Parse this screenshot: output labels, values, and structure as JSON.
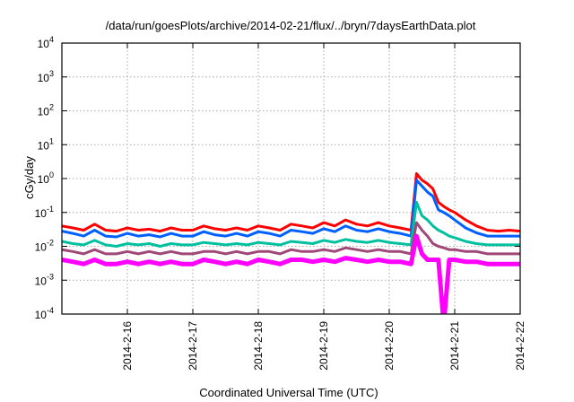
{
  "chart_data": {
    "type": "line",
    "title": "/data/run/goesPlots/archive/2014-02-21/flux/../bryn/7daysEarthData.plot",
    "xlabel": "Coordinated Universal Time (UTC)",
    "ylabel": "cGy/day",
    "yscale": "log",
    "ylim": [
      0.0001,
      10000
    ],
    "xlim_hours_from": "2014-02-15 00:00",
    "xlim": [
      0,
      168
    ],
    "grid": true,
    "legend": "none",
    "y_ticks": [
      {
        "base": "10",
        "exp": "4",
        "value": 10000
      },
      {
        "base": "10",
        "exp": "3",
        "value": 1000
      },
      {
        "base": "10",
        "exp": "2",
        "value": 100
      },
      {
        "base": "10",
        "exp": "1",
        "value": 10
      },
      {
        "base": "10",
        "exp": "0",
        "value": 1
      },
      {
        "base": "10",
        "exp": "-1",
        "value": 0.1
      },
      {
        "base": "10",
        "exp": "-2",
        "value": 0.01
      },
      {
        "base": "10",
        "exp": "-3",
        "value": 0.001
      },
      {
        "base": "10",
        "exp": "-4",
        "value": 0.0001
      }
    ],
    "x_ticks": [
      {
        "label": "2014-2-16",
        "hour": 24
      },
      {
        "label": "2014-2-17",
        "hour": 48
      },
      {
        "label": "2014-2-18",
        "hour": 72
      },
      {
        "label": "2014-2-19",
        "hour": 96
      },
      {
        "label": "2014-2-20",
        "hour": 120
      },
      {
        "label": "2014-2-21",
        "hour": 144
      },
      {
        "label": "2014-2-22",
        "hour": 168
      }
    ],
    "x": [
      0,
      4,
      8,
      12,
      16,
      20,
      24,
      28,
      32,
      36,
      40,
      44,
      48,
      52,
      56,
      60,
      64,
      68,
      72,
      76,
      80,
      84,
      88,
      92,
      96,
      100,
      104,
      108,
      112,
      116,
      120,
      124,
      128,
      130,
      132,
      134,
      136,
      138,
      140,
      142,
      144,
      148,
      152,
      156,
      160,
      164,
      168
    ],
    "series": [
      {
        "name": "red",
        "color": "#ff0000",
        "values": [
          0.04,
          0.035,
          0.03,
          0.045,
          0.03,
          0.028,
          0.035,
          0.03,
          0.032,
          0.028,
          0.035,
          0.03,
          0.03,
          0.04,
          0.033,
          0.03,
          0.035,
          0.03,
          0.04,
          0.035,
          0.03,
          0.045,
          0.04,
          0.035,
          0.05,
          0.04,
          0.06,
          0.045,
          0.04,
          0.05,
          0.04,
          0.035,
          0.03,
          1.4,
          0.9,
          0.7,
          0.5,
          0.2,
          0.15,
          0.12,
          0.1,
          0.06,
          0.04,
          0.03,
          0.028,
          0.03,
          0.028
        ]
      },
      {
        "name": "blue",
        "color": "#0060ff",
        "values": [
          0.028,
          0.024,
          0.02,
          0.03,
          0.02,
          0.019,
          0.024,
          0.02,
          0.022,
          0.019,
          0.024,
          0.02,
          0.02,
          0.027,
          0.022,
          0.02,
          0.024,
          0.02,
          0.027,
          0.024,
          0.02,
          0.03,
          0.027,
          0.024,
          0.033,
          0.027,
          0.04,
          0.03,
          0.027,
          0.033,
          0.027,
          0.024,
          0.02,
          0.9,
          0.6,
          0.4,
          0.3,
          0.12,
          0.1,
          0.08,
          0.06,
          0.035,
          0.025,
          0.02,
          0.02,
          0.02,
          0.02
        ]
      },
      {
        "name": "teal",
        "color": "#00c0a0",
        "values": [
          0.014,
          0.012,
          0.011,
          0.015,
          0.011,
          0.01,
          0.012,
          0.011,
          0.012,
          0.01,
          0.012,
          0.011,
          0.011,
          0.013,
          0.012,
          0.011,
          0.012,
          0.011,
          0.013,
          0.012,
          0.011,
          0.014,
          0.013,
          0.012,
          0.015,
          0.013,
          0.016,
          0.014,
          0.013,
          0.015,
          0.013,
          0.012,
          0.011,
          0.2,
          0.08,
          0.06,
          0.04,
          0.03,
          0.025,
          0.02,
          0.018,
          0.014,
          0.012,
          0.011,
          0.011,
          0.011,
          0.011
        ]
      },
      {
        "name": "purple",
        "color": "#a04878",
        "values": [
          0.008,
          0.007,
          0.006,
          0.008,
          0.006,
          0.006,
          0.007,
          0.006,
          0.007,
          0.006,
          0.007,
          0.006,
          0.006,
          0.007,
          0.007,
          0.006,
          0.007,
          0.006,
          0.007,
          0.007,
          0.006,
          0.008,
          0.007,
          0.007,
          0.008,
          0.007,
          0.009,
          0.008,
          0.007,
          0.008,
          0.007,
          0.007,
          0.006,
          0.05,
          0.03,
          0.02,
          0.012,
          0.01,
          0.009,
          0.008,
          0.008,
          0.007,
          0.007,
          0.006,
          0.006,
          0.006,
          0.006
        ]
      },
      {
        "name": "magenta",
        "color": "#ff00ff",
        "values": [
          0.004,
          0.0035,
          0.003,
          0.004,
          0.003,
          0.003,
          0.0035,
          0.003,
          0.0035,
          0.003,
          0.0035,
          0.003,
          0.003,
          0.004,
          0.0035,
          0.003,
          0.0035,
          0.003,
          0.004,
          0.0035,
          0.003,
          0.004,
          0.004,
          0.0035,
          0.004,
          0.0035,
          0.0045,
          0.004,
          0.0035,
          0.004,
          0.0035,
          0.0035,
          0.003,
          0.02,
          0.006,
          0.004,
          0.004,
          0.004,
          5e-05,
          0.004,
          0.004,
          0.0035,
          0.0035,
          0.003,
          0.003,
          0.003,
          0.003
        ]
      }
    ]
  }
}
